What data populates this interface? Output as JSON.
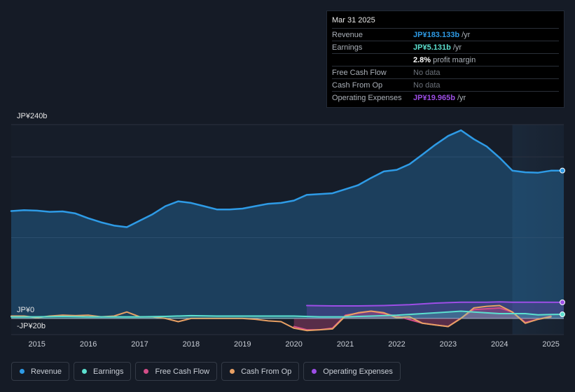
{
  "chart_data": {
    "type": "area",
    "y_axis": {
      "top_label": "JP¥240b",
      "zero_label": "JP¥0",
      "bottom_label": "-JP¥20b",
      "ylim": [
        -20,
        240
      ]
    },
    "x_ticks": [
      "2015",
      "2016",
      "2017",
      "2018",
      "2019",
      "2020",
      "2021",
      "2022",
      "2023",
      "2024",
      "2025"
    ],
    "xlim": [
      2014.5,
      2025.25
    ],
    "forecast_start": 2024.25,
    "series": [
      {
        "name": "Revenue",
        "color": "#2e9be6",
        "fill": true,
        "points": [
          [
            2014.5,
            133
          ],
          [
            2014.75,
            134
          ],
          [
            2015,
            133.5
          ],
          [
            2015.25,
            132
          ],
          [
            2015.5,
            132.5
          ],
          [
            2015.75,
            130
          ],
          [
            2016,
            124
          ],
          [
            2016.25,
            119
          ],
          [
            2016.5,
            115
          ],
          [
            2016.75,
            113
          ],
          [
            2017,
            121
          ],
          [
            2017.25,
            129
          ],
          [
            2017.5,
            139
          ],
          [
            2017.75,
            145
          ],
          [
            2018,
            143
          ],
          [
            2018.25,
            139
          ],
          [
            2018.5,
            135
          ],
          [
            2018.75,
            135
          ],
          [
            2019,
            136
          ],
          [
            2019.25,
            139
          ],
          [
            2019.5,
            142
          ],
          [
            2019.75,
            143
          ],
          [
            2020,
            146
          ],
          [
            2020.25,
            153
          ],
          [
            2020.5,
            154
          ],
          [
            2020.75,
            155
          ],
          [
            2021,
            160
          ],
          [
            2021.25,
            165
          ],
          [
            2021.5,
            174
          ],
          [
            2021.75,
            182
          ],
          [
            2022,
            184
          ],
          [
            2022.25,
            191
          ],
          [
            2022.5,
            203
          ],
          [
            2022.75,
            215
          ],
          [
            2023,
            226
          ],
          [
            2023.25,
            233
          ],
          [
            2023.5,
            222
          ],
          [
            2023.75,
            213
          ],
          [
            2024,
            199
          ],
          [
            2024.25,
            183
          ],
          [
            2024.5,
            181
          ],
          [
            2024.75,
            180.5
          ],
          [
            2025,
            183
          ],
          [
            2025.25,
            183.1
          ]
        ]
      },
      {
        "name": "Earnings",
        "color": "#5ce0cf",
        "fill": true,
        "points": [
          [
            2014.5,
            2
          ],
          [
            2015,
            2
          ],
          [
            2015.5,
            2.5
          ],
          [
            2016,
            2
          ],
          [
            2016.5,
            2
          ],
          [
            2017,
            2
          ],
          [
            2017.5,
            2.5
          ],
          [
            2018,
            3.5
          ],
          [
            2018.5,
            3
          ],
          [
            2019,
            3
          ],
          [
            2019.5,
            3
          ],
          [
            2020,
            3
          ],
          [
            2020.5,
            2
          ],
          [
            2021,
            2
          ],
          [
            2021.5,
            3
          ],
          [
            2022,
            4
          ],
          [
            2022.5,
            6
          ],
          [
            2023,
            8
          ],
          [
            2023.25,
            9
          ],
          [
            2023.5,
            8
          ],
          [
            2024,
            6
          ],
          [
            2024.5,
            6
          ],
          [
            2024.75,
            4.5
          ],
          [
            2025,
            5
          ],
          [
            2025.25,
            5.1
          ]
        ]
      },
      {
        "name": "Free Cash Flow",
        "color": "#d44d88",
        "fill": true,
        "points": [
          [
            2020,
            -10
          ],
          [
            2020.25,
            -14
          ],
          [
            2020.5,
            -14
          ],
          [
            2020.75,
            -12
          ],
          [
            2021,
            4
          ],
          [
            2021.5,
            9
          ],
          [
            2022,
            3
          ],
          [
            2022.5,
            -6
          ],
          [
            2023,
            -10
          ],
          [
            2023.5,
            11
          ],
          [
            2024,
            13
          ],
          [
            2024.25,
            8
          ],
          [
            2024.5,
            -5
          ],
          [
            2025,
            3
          ]
        ]
      },
      {
        "name": "Cash From Op",
        "color": "#e8a064",
        "fill": false,
        "points": [
          [
            2014.5,
            3
          ],
          [
            2014.75,
            3
          ],
          [
            2015,
            1
          ],
          [
            2015.25,
            3
          ],
          [
            2015.5,
            4
          ],
          [
            2015.75,
            3.5
          ],
          [
            2016,
            4
          ],
          [
            2016.25,
            2
          ],
          [
            2016.5,
            3
          ],
          [
            2016.75,
            8
          ],
          [
            2017,
            2
          ],
          [
            2017.25,
            2
          ],
          [
            2017.5,
            0
          ],
          [
            2017.75,
            -4
          ],
          [
            2018,
            0
          ],
          [
            2018.25,
            0
          ],
          [
            2018.5,
            0
          ],
          [
            2018.75,
            0
          ],
          [
            2019,
            0
          ],
          [
            2019.25,
            -1
          ],
          [
            2019.5,
            -3
          ],
          [
            2019.75,
            -4
          ],
          [
            2020,
            -12
          ],
          [
            2020.25,
            -15
          ],
          [
            2020.5,
            -14
          ],
          [
            2020.75,
            -13
          ],
          [
            2021,
            3
          ],
          [
            2021.25,
            7
          ],
          [
            2021.5,
            9
          ],
          [
            2021.75,
            7
          ],
          [
            2022,
            1
          ],
          [
            2022.25,
            2
          ],
          [
            2022.5,
            -6
          ],
          [
            2022.75,
            -8
          ],
          [
            2023,
            -10
          ],
          [
            2023.25,
            0
          ],
          [
            2023.5,
            13
          ],
          [
            2023.75,
            15
          ],
          [
            2024,
            16
          ],
          [
            2024.25,
            8
          ],
          [
            2024.5,
            -6
          ],
          [
            2024.75,
            -1
          ],
          [
            2025,
            2
          ]
        ]
      },
      {
        "name": "Operating Expenses",
        "color": "#9d4ee6",
        "fill": true,
        "points": [
          [
            2020.25,
            16
          ],
          [
            2020.75,
            15.5
          ],
          [
            2021.25,
            15.5
          ],
          [
            2021.75,
            16
          ],
          [
            2022.25,
            17
          ],
          [
            2022.75,
            19
          ],
          [
            2023.25,
            20
          ],
          [
            2023.75,
            20
          ],
          [
            2024,
            20.5
          ],
          [
            2024.25,
            20
          ],
          [
            2024.75,
            20
          ],
          [
            2025.25,
            19.97
          ]
        ]
      }
    ]
  },
  "tooltip": {
    "date": "Mar 31 2025",
    "rows": [
      {
        "label": "Revenue",
        "value": "JP¥183.133b",
        "unit": "/yr",
        "color": "#2e9be6"
      },
      {
        "label": "Earnings",
        "value": "JP¥5.131b",
        "unit": "/yr",
        "color": "#5ce0cf"
      },
      {
        "label": "",
        "value": "2.8%",
        "unit": "profit margin",
        "color": "#ffffff"
      },
      {
        "label": "Free Cash Flow",
        "value": "No data",
        "unit": "",
        "color": "#6d737c"
      },
      {
        "label": "Cash From Op",
        "value": "No data",
        "unit": "",
        "color": "#6d737c"
      },
      {
        "label": "Operating Expenses",
        "value": "JP¥19.965b",
        "unit": "/yr",
        "color": "#9d4ee6"
      }
    ]
  },
  "legend": [
    {
      "label": "Revenue",
      "color": "#2e9be6"
    },
    {
      "label": "Earnings",
      "color": "#5ce0cf"
    },
    {
      "label": "Free Cash Flow",
      "color": "#d44d88"
    },
    {
      "label": "Cash From Op",
      "color": "#e8a064"
    },
    {
      "label": "Operating Expenses",
      "color": "#9d4ee6"
    }
  ]
}
